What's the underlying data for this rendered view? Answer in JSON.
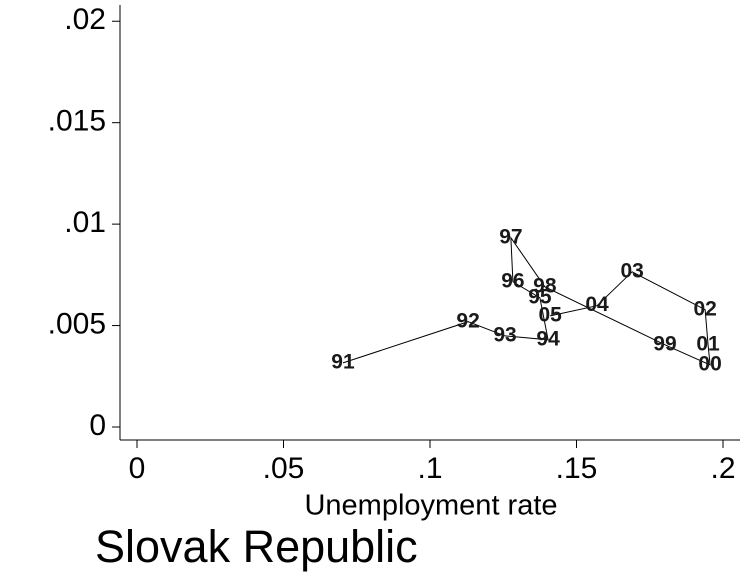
{
  "chart_data": {
    "type": "scatter",
    "connected": true,
    "x_label": "Unemployment rate",
    "caption": "Slovak Republic",
    "point_labels": [
      "91",
      "92",
      "93",
      "94",
      "95",
      "96",
      "97",
      "98",
      "99",
      "00",
      "01",
      "02",
      "03",
      "04",
      "05"
    ],
    "x": [
      0.0703,
      0.113,
      0.1256,
      0.1403,
      0.1375,
      0.1283,
      0.1276,
      0.1392,
      0.1802,
      0.1956,
      0.1949,
      0.1939,
      0.169,
      0.157,
      0.141
    ],
    "series": [
      {
        "color": "#000000",
        "values": [
          0.00316,
          0.00519,
          0.00449,
          0.0043,
          0.00637,
          0.00716,
          0.00933,
          0.00691,
          0.00405,
          0.00306,
          0.00405,
          0.00578,
          0.00765,
          0.00598,
          0.00548
        ]
      }
    ],
    "xlim": [
      -0.0058,
      0.2058
    ],
    "ylim": [
      -0.00064,
      0.0208
    ],
    "xticks": [
      0,
      {
        "value": 0.05,
        "label": ".05"
      },
      {
        "value": 0.1,
        "label": ".1"
      },
      {
        "value": 0.15,
        "label": ".15"
      },
      {
        "value": 0.2,
        "label": ".2"
      }
    ],
    "yticks": [
      0,
      {
        "value": 0.005,
        "label": ".005"
      },
      {
        "value": 0.01,
        "label": ".01"
      },
      {
        "value": 0.015,
        "label": ".015"
      },
      {
        "value": 0.02,
        "label": ".02"
      }
    ]
  }
}
